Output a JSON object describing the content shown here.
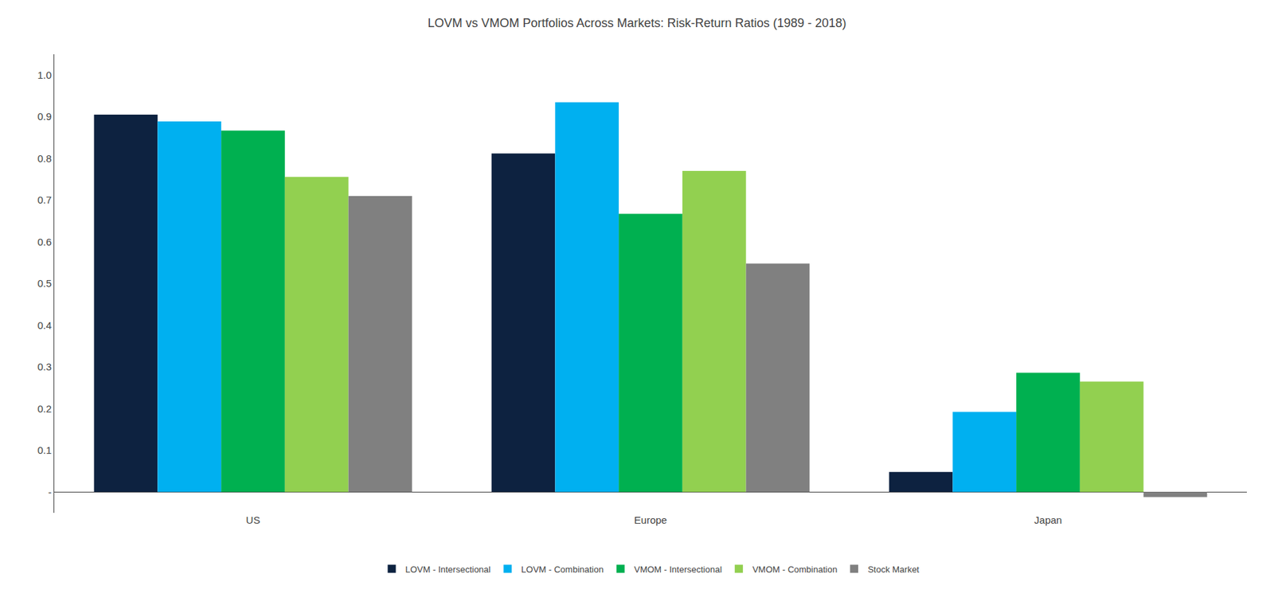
{
  "chart_data": {
    "type": "bar",
    "title": "LOVM vs VMOM Portfolios Across Markets: Risk-Return Ratios (1989 - 2018)",
    "categories": [
      "US",
      "Europe",
      "Japan"
    ],
    "series": [
      {
        "name": "LOVM - Intersectional",
        "color": "#0d2240",
        "values": [
          0.905,
          0.812,
          0.048
        ]
      },
      {
        "name": "LOVM - Combination",
        "color": "#00b0f0",
        "values": [
          0.889,
          0.935,
          0.192
        ]
      },
      {
        "name": "VMOM - Intersectional",
        "color": "#00b050",
        "values": [
          0.867,
          0.667,
          0.286
        ]
      },
      {
        "name": "VMOM - Combination",
        "color": "#92d050",
        "values": [
          0.756,
          0.77,
          0.265
        ]
      },
      {
        "name": "Stock Market",
        "color": "#808080",
        "values": [
          0.71,
          0.548,
          -0.012
        ]
      }
    ],
    "ylim": [
      -0.05,
      1.05
    ],
    "yticks": [
      {
        "value": 0.0,
        "label": "-"
      },
      0.1,
      0.2,
      0.3,
      0.4,
      0.5,
      0.6,
      0.7,
      0.8,
      0.9,
      {
        "value": 1.0,
        "label": "1.0"
      }
    ],
    "grid": false,
    "legend": "bottom"
  }
}
